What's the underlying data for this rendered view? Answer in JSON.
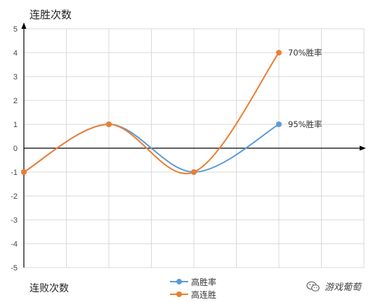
{
  "chart_data": {
    "type": "line",
    "ylabel": "连胜次数",
    "xlabel": "连败次数",
    "ylim": [
      -5,
      5
    ],
    "yticks": [
      "5",
      "4",
      "3",
      "2",
      "1",
      "0",
      "-1",
      "-2",
      "-3",
      "-4",
      "-5"
    ],
    "x": [
      0,
      1,
      2,
      3
    ],
    "grid": true,
    "legend_position": "bottom",
    "series": [
      {
        "name": "高胜率",
        "color": "#5b9bd5",
        "values": [
          -1,
          1,
          -1,
          1
        ],
        "end_label": "95%胜率"
      },
      {
        "name": "高连胜",
        "color": "#ed7d31",
        "values": [
          -1,
          1,
          -1,
          4
        ],
        "end_label": "70%胜率"
      }
    ]
  },
  "watermark": {
    "text": "游戏葡萄",
    "icon": "wechat-icon"
  }
}
